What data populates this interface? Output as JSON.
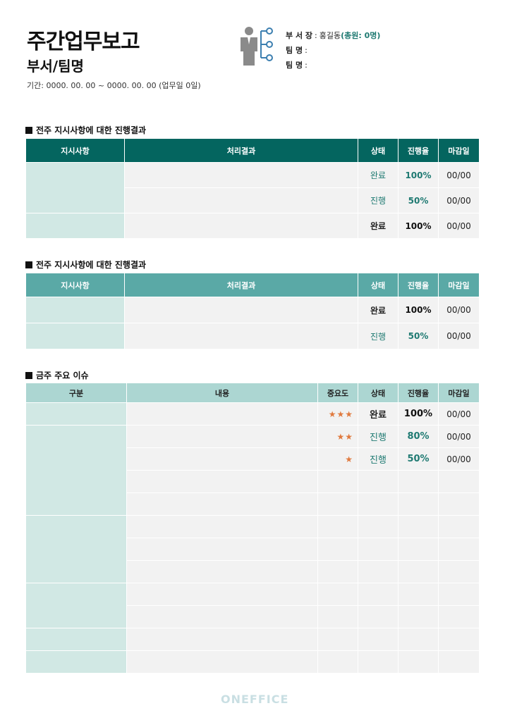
{
  "header": {
    "title": "주간업무보고",
    "subtitle": "부서/팀명",
    "period": "기간: 0000. 00. 00 ~ 0000. 00. 00 (업무일 0일)"
  },
  "info": {
    "rows": [
      {
        "label": "부 서 장",
        "value": "홍길동",
        "extra": "(총원: 0명)"
      },
      {
        "label": "팀 명",
        "value": "",
        "extra": ""
      },
      {
        "label": "팀 명",
        "value": "",
        "extra": ""
      }
    ]
  },
  "section1": {
    "title": "전주 지시사항에 대한 진행결과",
    "headers": [
      "지시사항",
      "처리결과",
      "상태",
      "진행율",
      "마감일"
    ],
    "rows": [
      {
        "status": "완료",
        "progress": "100%",
        "due": "00/00"
      },
      {
        "status": "진행",
        "progress": "50%",
        "due": "00/00"
      },
      {
        "status": "완료",
        "progress": "100%",
        "due": "00/00"
      }
    ]
  },
  "section2": {
    "title": "전주 지시사항에 대한 진행결과",
    "headers": [
      "지시사항",
      "처리결과",
      "상태",
      "진행율",
      "마감일"
    ],
    "rows": [
      {
        "status": "완료",
        "progress": "100%",
        "due": "00/00"
      },
      {
        "status": "진행",
        "progress": "50%",
        "due": "00/00"
      }
    ]
  },
  "section3": {
    "title": "금주 주요 이슈",
    "headers": [
      "구분",
      "내용",
      "중요도",
      "상태",
      "진행율",
      "마감일"
    ],
    "rows": [
      {
        "importance": "★★★",
        "status": "완료",
        "progress": "100%",
        "due": "00/00"
      },
      {
        "importance": "★★",
        "status": "진행",
        "progress": "80%",
        "due": "00/00"
      },
      {
        "importance": "★",
        "status": "진행",
        "progress": "50%",
        "due": "00/00"
      }
    ]
  },
  "footer": {
    "logo": "ONEFFICE"
  },
  "colors": {
    "dark_teal": "#04655f",
    "mid_teal": "#5aa9a6",
    "light_teal": "#acd6d2",
    "category_bg": "#d1e8e4",
    "accent_text": "#1f7a72",
    "star": "#e07a3f",
    "icon_gray": "#8a8a8a",
    "icon_blue": "#3c7fb0"
  },
  "icons": {
    "org_chart": "person-org-chart-icon",
    "section_marker": "black-square-icon"
  }
}
